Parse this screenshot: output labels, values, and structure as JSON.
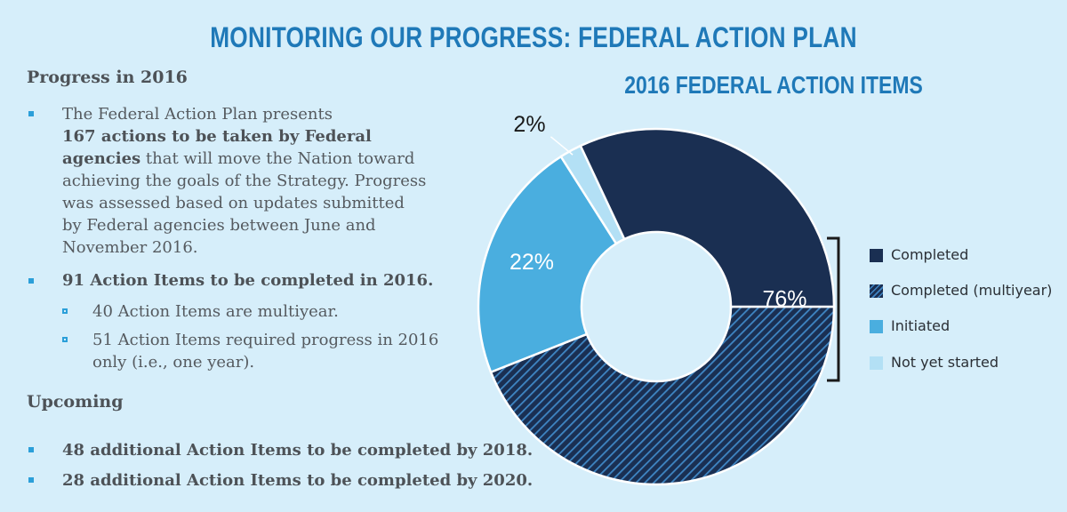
{
  "title": "MONITORING OUR PROGRESS: FEDERAL ACTION PLAN",
  "progress": {
    "heading": "Progress in 2016",
    "para_plain_1": "The Federal Action Plan presents",
    "para_bold_1": "167 actions to be taken by Federal",
    "para_bold_2": "agencies",
    "para_rest_2": " that will move the Nation toward",
    "para_line_3": "achieving the goals of the Strategy. Progress",
    "para_line_4": "was assessed based on updates submitted",
    "para_line_5": "by Federal agencies between June and",
    "para_line_6": "November 2016.",
    "bullet_2": "91 Action Items to be completed in 2016.",
    "sub_1": "40 Action Items are multiyear.",
    "sub_2_line_1": "51 Action Items required progress in 2016",
    "sub_2_line_2": "only (i.e., one year)."
  },
  "upcoming": {
    "heading": "Upcoming",
    "item_1": "48 additional Action Items to be completed by 2018.",
    "item_2": "28 additional Action Items to be completed by 2020."
  },
  "colors": {
    "completed": "#1a2f52",
    "completed_multiyear": "#1d3d6a",
    "initiated": "#4aaedf",
    "not_started": "#b3e0f5",
    "title_blue": "#1f79b8",
    "bullet": "#2b9fd9"
  },
  "chart_data": {
    "type": "pie",
    "title": "2016 FEDERAL ACTION ITEMS",
    "categories": [
      "Completed",
      "Completed (multiyear)",
      "Initiated",
      "Not yet started"
    ],
    "values": [
      32,
      44,
      22,
      2
    ],
    "labels": [
      {
        "text": "76%",
        "applies_to": [
          "Completed",
          "Completed (multiyear)"
        ]
      },
      {
        "text": "22%",
        "applies_to": [
          "Initiated"
        ]
      },
      {
        "text": "2%",
        "applies_to": [
          "Not yet started"
        ]
      }
    ],
    "legend": [
      "Completed",
      "Completed (multiyear)",
      "Initiated",
      "Not yet started"
    ],
    "legend_position": "right"
  }
}
